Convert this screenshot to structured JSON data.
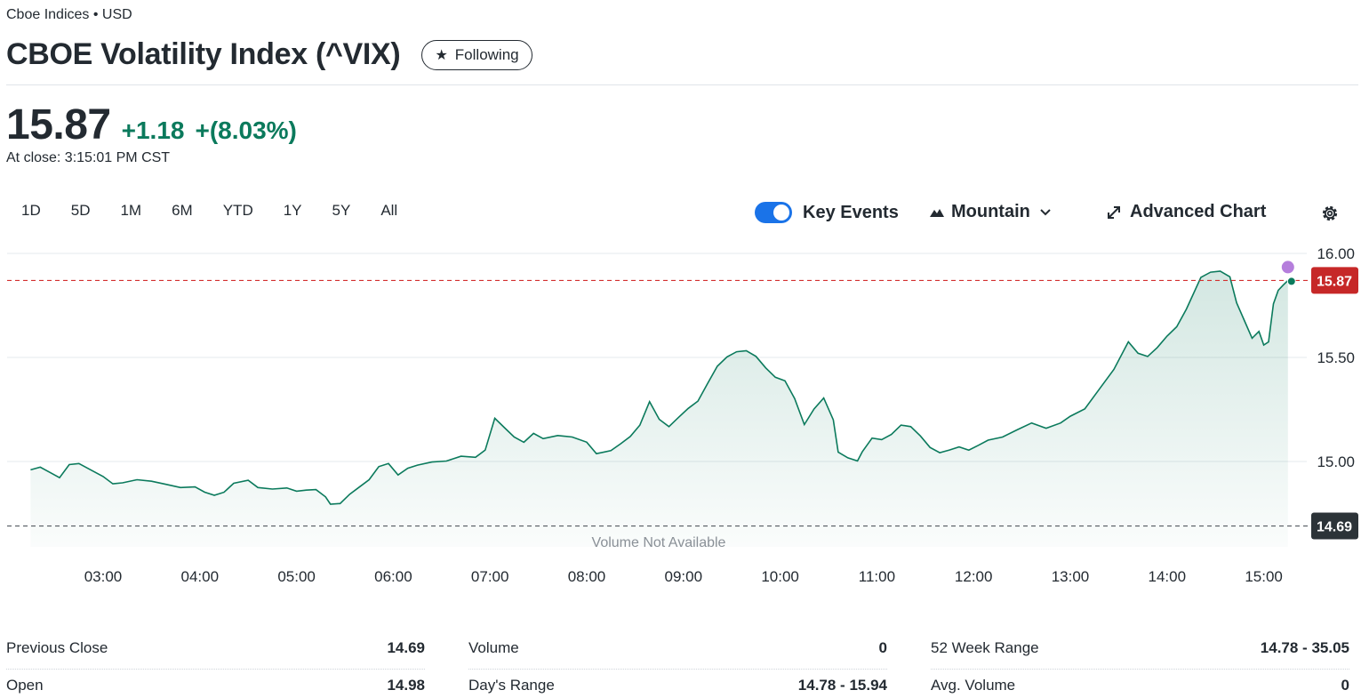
{
  "header": {
    "exchange": "Cboe Indices • USD",
    "title": "CBOE Volatility Index (^VIX)",
    "follow_label": "Following"
  },
  "quote": {
    "price": "15.87",
    "change": "+1.18",
    "change_pct": "+(8.03%)",
    "close_time": "At close: 3:15:01 PM CST",
    "up_color": "#0b7a5c"
  },
  "ranges": [
    "1D",
    "5D",
    "1M",
    "6M",
    "YTD",
    "1Y",
    "5Y",
    "All"
  ],
  "toolbar": {
    "key_events": "Key Events",
    "mountain": "Mountain",
    "advanced": "Advanced Chart"
  },
  "chart_data": {
    "type": "area",
    "x_ticks": [
      "03:00",
      "04:00",
      "05:00",
      "06:00",
      "07:00",
      "08:00",
      "09:00",
      "10:00",
      "11:00",
      "12:00",
      "13:00",
      "14:00",
      "15:00"
    ],
    "y_ticks": [
      "16.00",
      "15.50",
      "15.00"
    ],
    "ylim": [
      14.6,
      16.06
    ],
    "xlim": [
      2.2,
      15.3
    ],
    "current_price": 15.87,
    "current_label": "15.87",
    "previous_close": 14.69,
    "previous_close_label": "14.69",
    "volume_note": "Volume Not Available",
    "line_color": "#0b7a5c",
    "points": [
      [
        2.25,
        14.96
      ],
      [
        2.35,
        14.97
      ],
      [
        2.45,
        14.95
      ],
      [
        2.55,
        14.93
      ],
      [
        2.65,
        14.98
      ],
      [
        2.75,
        14.99
      ],
      [
        2.85,
        14.97
      ],
      [
        3.0,
        14.92
      ],
      [
        3.1,
        14.89
      ],
      [
        3.2,
        14.9
      ],
      [
        3.35,
        14.92
      ],
      [
        3.5,
        14.9
      ],
      [
        3.65,
        14.89
      ],
      [
        3.8,
        14.88
      ],
      [
        3.95,
        14.87
      ],
      [
        4.05,
        14.85
      ],
      [
        4.15,
        14.84
      ],
      [
        4.25,
        14.86
      ],
      [
        4.35,
        14.89
      ],
      [
        4.5,
        14.91
      ],
      [
        4.6,
        14.88
      ],
      [
        4.75,
        14.86
      ],
      [
        4.9,
        14.87
      ],
      [
        5.0,
        14.86
      ],
      [
        5.1,
        14.87
      ],
      [
        5.2,
        14.86
      ],
      [
        5.3,
        14.83
      ],
      [
        5.35,
        14.8
      ],
      [
        5.45,
        14.79
      ],
      [
        5.55,
        14.84
      ],
      [
        5.65,
        14.88
      ],
      [
        5.75,
        14.92
      ],
      [
        5.85,
        14.97
      ],
      [
        5.95,
        14.99
      ],
      [
        6.05,
        14.94
      ],
      [
        6.15,
        14.96
      ],
      [
        6.25,
        14.98
      ],
      [
        6.4,
        15.0
      ],
      [
        6.55,
        15.01
      ],
      [
        6.7,
        15.02
      ],
      [
        6.85,
        15.02
      ],
      [
        6.95,
        15.06
      ],
      [
        7.05,
        15.2
      ],
      [
        7.15,
        15.16
      ],
      [
        7.25,
        15.12
      ],
      [
        7.35,
        15.1
      ],
      [
        7.45,
        15.13
      ],
      [
        7.55,
        15.11
      ],
      [
        7.7,
        15.13
      ],
      [
        7.85,
        15.11
      ],
      [
        8.0,
        15.09
      ],
      [
        8.1,
        15.04
      ],
      [
        8.25,
        15.06
      ],
      [
        8.35,
        15.08
      ],
      [
        8.45,
        15.12
      ],
      [
        8.55,
        15.18
      ],
      [
        8.65,
        15.28
      ],
      [
        8.75,
        15.2
      ],
      [
        8.85,
        15.17
      ],
      [
        8.95,
        15.22
      ],
      [
        9.05,
        15.25
      ],
      [
        9.15,
        15.29
      ],
      [
        9.25,
        15.38
      ],
      [
        9.35,
        15.45
      ],
      [
        9.45,
        15.5
      ],
      [
        9.55,
        15.53
      ],
      [
        9.65,
        15.54
      ],
      [
        9.75,
        15.5
      ],
      [
        9.85,
        15.45
      ],
      [
        9.95,
        15.41
      ],
      [
        10.05,
        15.38
      ],
      [
        10.15,
        15.3
      ],
      [
        10.25,
        15.18
      ],
      [
        10.35,
        15.26
      ],
      [
        10.45,
        15.3
      ],
      [
        10.55,
        15.2
      ],
      [
        10.6,
        15.05
      ],
      [
        10.7,
        15.01
      ],
      [
        10.8,
        15.0
      ],
      [
        10.85,
        15.05
      ],
      [
        10.95,
        15.12
      ],
      [
        11.05,
        15.1
      ],
      [
        11.15,
        15.13
      ],
      [
        11.25,
        15.18
      ],
      [
        11.35,
        15.16
      ],
      [
        11.45,
        15.12
      ],
      [
        11.55,
        15.07
      ],
      [
        11.65,
        15.05
      ],
      [
        11.75,
        15.05
      ],
      [
        11.85,
        15.07
      ],
      [
        11.95,
        15.06
      ],
      [
        12.05,
        15.07
      ],
      [
        12.15,
        15.1
      ],
      [
        12.3,
        15.12
      ],
      [
        12.45,
        15.16
      ],
      [
        12.6,
        15.18
      ],
      [
        12.75,
        15.16
      ],
      [
        12.9,
        15.19
      ],
      [
        13.0,
        15.21
      ],
      [
        13.15,
        15.25
      ],
      [
        13.3,
        15.35
      ],
      [
        13.45,
        15.45
      ],
      [
        13.6,
        15.57
      ],
      [
        13.7,
        15.52
      ],
      [
        13.8,
        15.51
      ],
      [
        13.9,
        15.54
      ],
      [
        14.0,
        15.6
      ],
      [
        14.1,
        15.65
      ],
      [
        14.2,
        15.74
      ],
      [
        14.35,
        15.88
      ],
      [
        14.45,
        15.91
      ],
      [
        14.55,
        15.92
      ],
      [
        14.65,
        15.88
      ],
      [
        14.72,
        15.76
      ],
      [
        14.8,
        15.68
      ],
      [
        14.88,
        15.6
      ],
      [
        14.95,
        15.62
      ],
      [
        15.0,
        15.56
      ],
      [
        15.05,
        15.58
      ],
      [
        15.1,
        15.75
      ],
      [
        15.15,
        15.82
      ],
      [
        15.2,
        15.85
      ],
      [
        15.25,
        15.87
      ]
    ]
  },
  "stats": {
    "col1": [
      {
        "label": "Previous Close",
        "value": "14.69"
      },
      {
        "label": "Open",
        "value": "14.98"
      }
    ],
    "col2": [
      {
        "label": "Volume",
        "value": "0"
      },
      {
        "label": "Day's Range",
        "value": "14.78 - 15.94"
      }
    ],
    "col3": [
      {
        "label": "52 Week Range",
        "value": "14.78 - 35.05"
      },
      {
        "label": "Avg. Volume",
        "value": "0"
      }
    ]
  }
}
